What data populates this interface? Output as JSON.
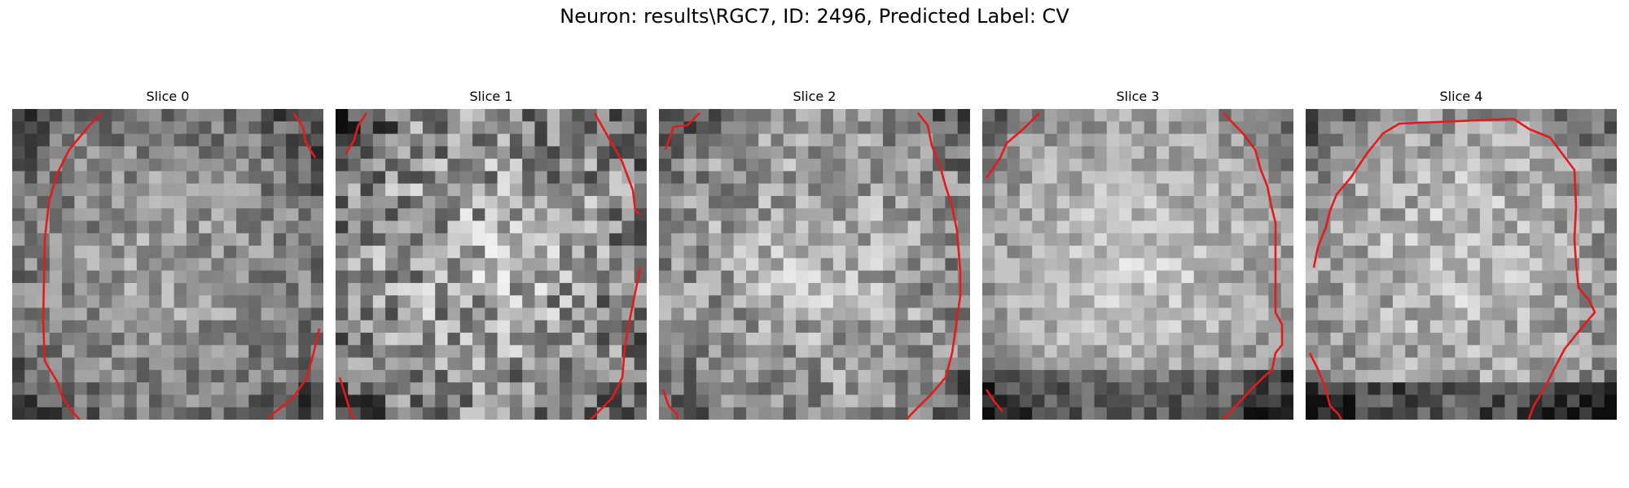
{
  "figure": {
    "suptitle": "Neuron: results\\RGC7, ID: 2496, Predicted Label: CV",
    "contour_color": "#e41a1c"
  },
  "panels": [
    {
      "title": "Slice 0"
    },
    {
      "title": "Slice 1"
    },
    {
      "title": "Slice 2"
    },
    {
      "title": "Slice 3"
    },
    {
      "title": "Slice 4"
    }
  ]
}
